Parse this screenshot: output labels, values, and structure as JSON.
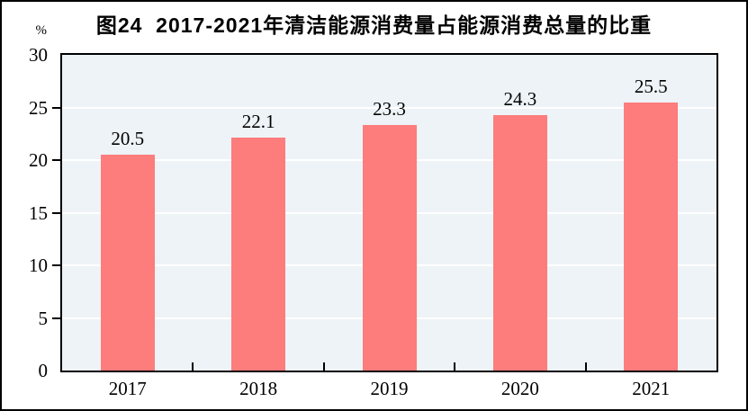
{
  "title": "图24  2017-2021年清洁能源消费量占能源消费总量的比重",
  "chart_data": {
    "type": "bar",
    "title": "图24  2017-2021年清洁能源消费量占能源消费总量的比重",
    "categories": [
      "2017",
      "2018",
      "2019",
      "2020",
      "2021"
    ],
    "values": [
      20.5,
      22.1,
      23.3,
      24.3,
      25.5
    ],
    "data_labels": [
      "20.5",
      "22.1",
      "23.3",
      "24.3",
      "25.5"
    ],
    "xlabel": "",
    "ylabel": "%",
    "ylim": [
      0,
      30
    ],
    "ytick_step": 5,
    "ytick_labels": [
      "0",
      "5",
      "10",
      "15",
      "20",
      "25",
      "30"
    ],
    "grid": true,
    "legend_position": "none"
  },
  "colors": {
    "bar": "#FD7C7C",
    "plot_background": "#EDF3F7",
    "gridline": "#FFFFFF",
    "axis": "#000000",
    "text": "#000000",
    "page_background": "#FFFFFF"
  }
}
